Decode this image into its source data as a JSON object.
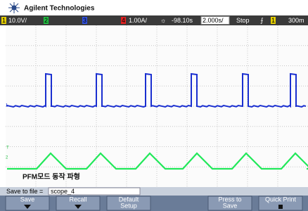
{
  "header": {
    "brand": "Agilent Technologies"
  },
  "status": {
    "ch1": "1",
    "ch1_scale": "10.0V/",
    "ch2": "2",
    "ch3": "3",
    "ch4": "4",
    "ch4_scale": "1.00A/",
    "delay": "-98.10s",
    "timebase": "2.000s/",
    "run_state": "Stop",
    "trigger_source": "1",
    "trigger_level": "300m"
  },
  "annotation": "PFM모드 동작 파형",
  "save_bar": {
    "label": "Save to file =",
    "value": "scope_4"
  },
  "softkeys": [
    [
      "Save"
    ],
    [
      "Recall"
    ],
    [
      "Default",
      "Setup"
    ],
    [
      "Press to",
      "Save"
    ],
    [
      "Quick Print"
    ]
  ]
}
